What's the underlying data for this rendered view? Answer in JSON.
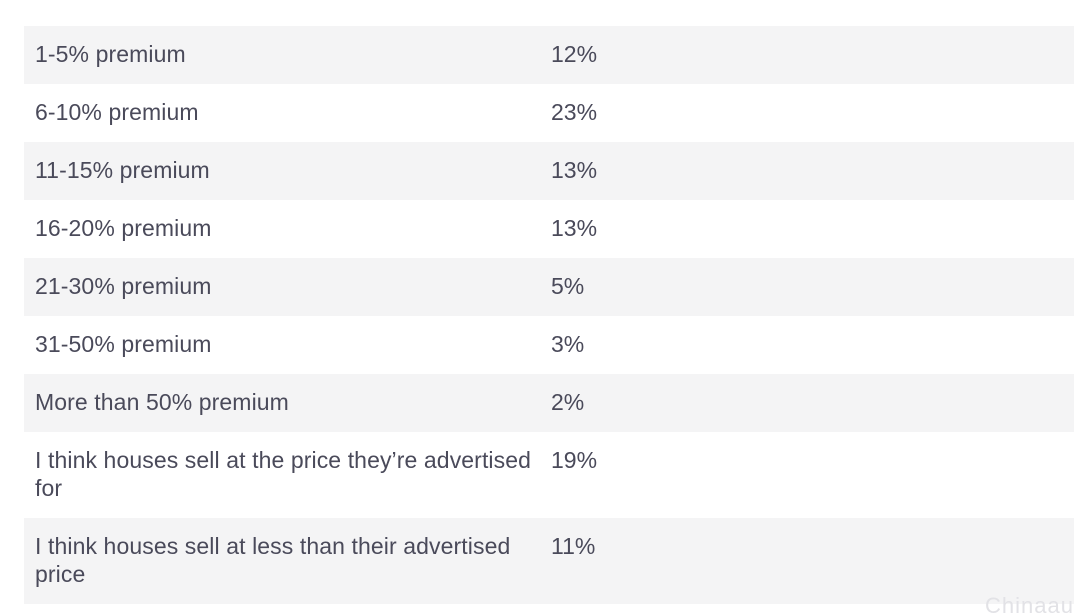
{
  "table": {
    "rows": [
      {
        "label": "1-5% premium",
        "value": "12%"
      },
      {
        "label": "6-10% premium",
        "value": "23%"
      },
      {
        "label": "11-15% premium",
        "value": "13%"
      },
      {
        "label": "16-20% premium",
        "value": "13%"
      },
      {
        "label": "21-30% premium",
        "value": "5%"
      },
      {
        "label": "31-50% premium",
        "value": "3%"
      },
      {
        "label": "More than 50% premium",
        "value": "2%"
      },
      {
        "label": "I think houses sell at the price they’re advertised for",
        "value": "19%"
      },
      {
        "label": "I think houses sell at less than their advertised price",
        "value": "11%"
      }
    ]
  },
  "watermark": {
    "text": "Chinaau"
  }
}
